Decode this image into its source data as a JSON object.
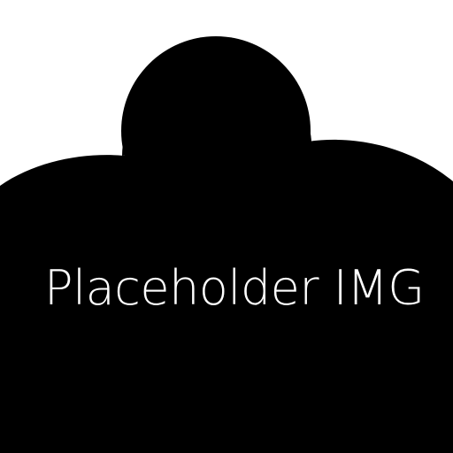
{
  "caption": {
    "text": "Placeholder IMG"
  },
  "colors": {
    "background": "#ffffff",
    "shape": "#000000",
    "text": "#ffffff"
  },
  "icons": {
    "shape": "cloud-icon"
  }
}
